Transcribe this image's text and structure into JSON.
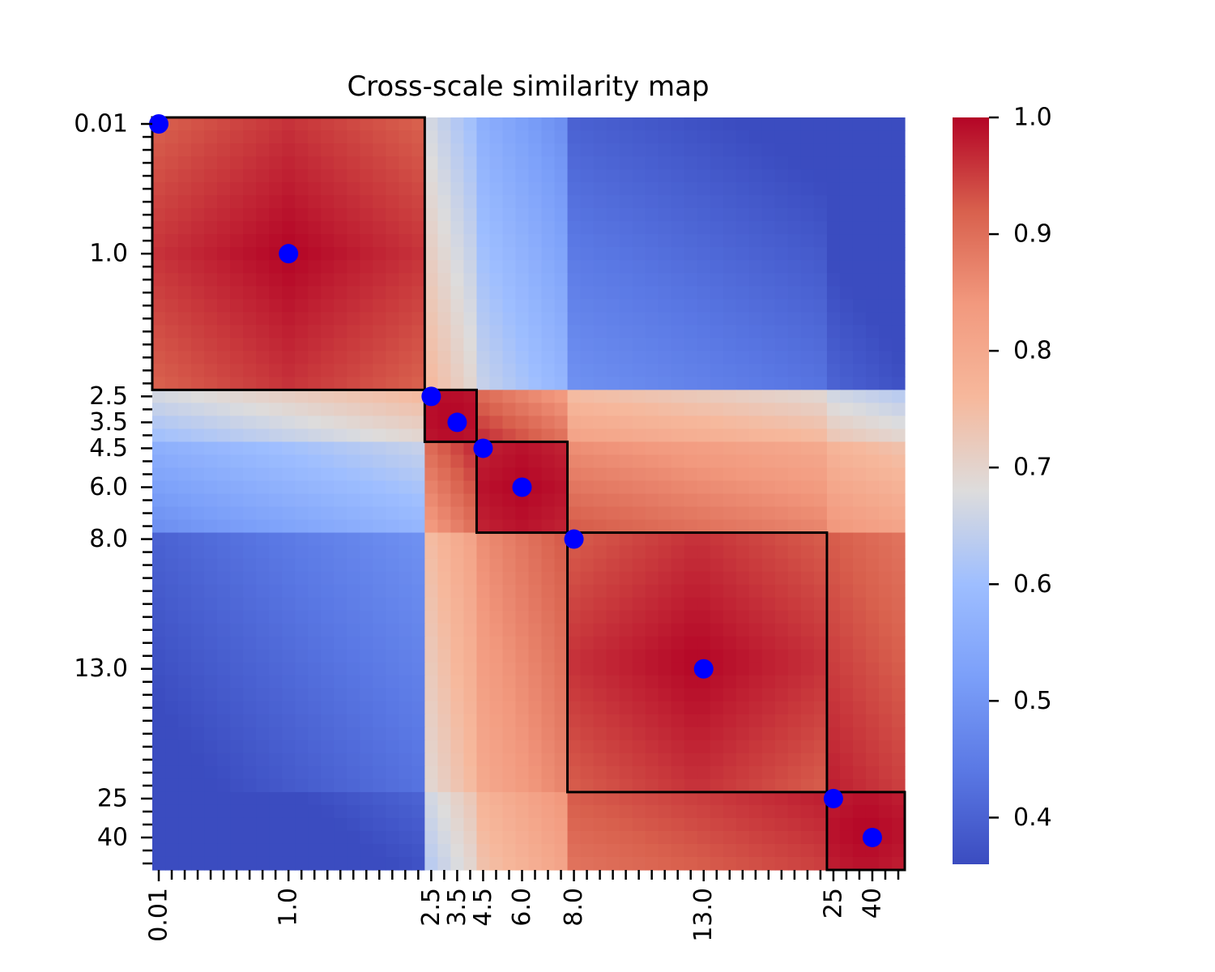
{
  "chart_data": {
    "type": "heatmap",
    "title": "Cross-scale similarity map",
    "xlabel": "",
    "ylabel": "",
    "grid": false,
    "x_tick_labels": [
      "0.01",
      "1.0",
      "2.5",
      "3.5",
      "4.5",
      "6.0",
      "8.0",
      "13.0",
      "25",
      "40"
    ],
    "y_tick_labels": [
      "0.01",
      "1.0",
      "2.5",
      "3.5",
      "4.5",
      "6.0",
      "8.0",
      "13.0",
      "25",
      "40"
    ],
    "matrix_size": 58,
    "labeled_indices": [
      0,
      10,
      21,
      23,
      25,
      28,
      32,
      42,
      52,
      55
    ],
    "colorbar": {
      "colormap": "coolwarm",
      "min": 0.36,
      "max": 1.0,
      "tick_labels": [
        "0.4",
        "0.5",
        "0.6",
        "0.7",
        "0.8",
        "0.9",
        "1.0"
      ],
      "tick_values": [
        0.4,
        0.5,
        0.6,
        0.7,
        0.8,
        0.9,
        1.0
      ]
    },
    "value_range": [
      0.36,
      1.0
    ],
    "clusters": [
      {
        "start": 0,
        "end": 20
      },
      {
        "start": 21,
        "end": 24
      },
      {
        "start": 25,
        "end": 31
      },
      {
        "start": 32,
        "end": 51
      },
      {
        "start": 52,
        "end": 57
      }
    ],
    "markers": {
      "color": "#0000ff",
      "points": [
        {
          "x": "0.01",
          "y": "0.01"
        },
        {
          "x": "1.0",
          "y": "1.0"
        },
        {
          "x": "2.5",
          "y": "2.5"
        },
        {
          "x": "3.5",
          "y": "3.5"
        },
        {
          "x": "4.5",
          "y": "4.5"
        },
        {
          "x": "6.0",
          "y": "6.0"
        },
        {
          "x": "8.0",
          "y": "8.0"
        },
        {
          "x": "13.0",
          "y": "13.0"
        },
        {
          "x": "25",
          "y": "25"
        },
        {
          "x": "40",
          "y": "40"
        }
      ]
    },
    "cluster_border_color": "#000000"
  }
}
